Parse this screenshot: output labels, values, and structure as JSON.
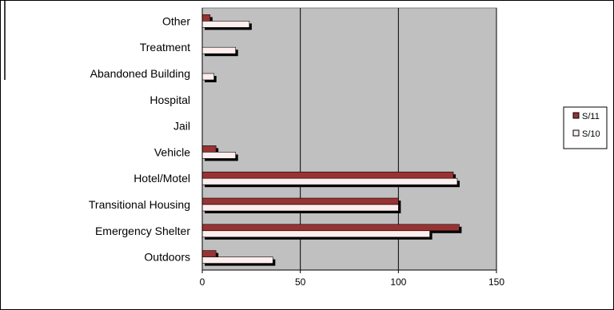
{
  "chart_data": {
    "type": "bar",
    "orientation": "horizontal",
    "categories": [
      "Outdoors",
      "Emergency Shelter",
      "Transitional Housing",
      "Hotel/Motel",
      "Vehicle",
      "Jail",
      "Hospital",
      "Abandoned Building",
      "Treatment",
      "Other"
    ],
    "series": [
      {
        "name": "S/11",
        "values": [
          7,
          131,
          100,
          128,
          7,
          0,
          0,
          0,
          0,
          4
        ]
      },
      {
        "name": "S/10",
        "values": [
          36,
          116,
          100,
          130,
          17,
          0,
          0,
          6,
          17,
          24
        ]
      }
    ],
    "xlim": [
      0,
      150
    ],
    "xticks": [
      "0",
      "50",
      "100",
      "150"
    ],
    "grid": true,
    "legend_position": "right",
    "colors": {
      "S/11": "#993333",
      "S/10": "#ffeeee",
      "plot_background": "#c0c0c0",
      "bar_shadow": "#000000"
    }
  }
}
